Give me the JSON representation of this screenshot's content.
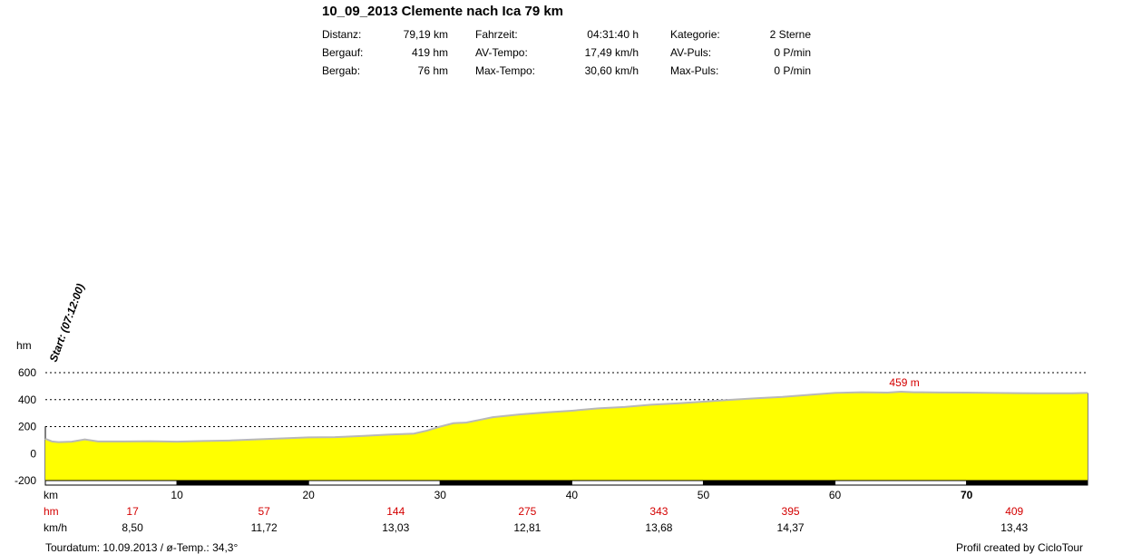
{
  "title": "10_09_2013 Clemente nach Ica 79 km",
  "stats": {
    "distanz_label": "Distanz:",
    "distanz_value": "79,19 km",
    "bergauf_label": "Bergauf:",
    "bergauf_value": "419 hm",
    "bergab_label": "Bergab:",
    "bergab_value": "76 hm",
    "fahrzeit_label": "Fahrzeit:",
    "fahrzeit_value": "04:31:40 h",
    "avtempo_label": "AV-Tempo:",
    "avtempo_value": "17,49 km/h",
    "maxtempo_label": "Max-Tempo:",
    "maxtempo_value": "30,60 km/h",
    "kategorie_label": "Kategorie:",
    "kategorie_value": "2 Sterne",
    "avpuls_label": "AV-Puls:",
    "avpuls_value": "0 P/min",
    "maxpuls_label": "Max-Puls:",
    "maxpuls_value": "0 P/min"
  },
  "start_label": "Start: (07:12:00)",
  "max_label": "459 m",
  "row_labels": {
    "km": "km",
    "hm": "hm",
    "kmh": "km/h"
  },
  "footer": {
    "left": "Tourdatum: 10.09.2013  /  ø-Temp.: 34,3°",
    "right": "Profil created by CicloTour"
  },
  "colors": {
    "fill": "#ffff00",
    "line": "#b8b8b8",
    "accent": "#d40000"
  },
  "chart_data": {
    "type": "area",
    "ylabel": "hm",
    "xlabel": "km",
    "ylim": [
      -200,
      600
    ],
    "xlim": [
      0,
      79.19
    ],
    "yticks": [
      600,
      400,
      200,
      0,
      -200
    ],
    "xticks": [
      10,
      20,
      30,
      40,
      50,
      60,
      70
    ],
    "grid": "dashed horizontal",
    "series": [
      {
        "x": [
          0,
          0.5,
          1,
          2,
          3,
          4,
          6,
          8,
          10,
          12,
          14,
          16,
          18,
          20,
          22,
          24,
          26,
          28,
          29,
          30,
          31,
          32,
          33,
          34,
          35,
          36,
          38,
          40,
          42,
          44,
          46,
          48,
          50,
          52,
          54,
          56,
          58,
          60,
          62,
          64,
          65,
          66,
          68,
          70,
          72,
          74,
          76,
          78,
          79.19
        ],
        "y": [
          110,
          90,
          85,
          88,
          105,
          90,
          90,
          92,
          88,
          93,
          97,
          105,
          113,
          120,
          122,
          130,
          140,
          148,
          170,
          200,
          225,
          230,
          250,
          270,
          280,
          290,
          305,
          318,
          335,
          345,
          362,
          372,
          385,
          398,
          410,
          420,
          435,
          450,
          455,
          452,
          459,
          455,
          453,
          452,
          450,
          448,
          447,
          447,
          450
        ]
      }
    ],
    "segment_stats": {
      "km": [
        5,
        15,
        25,
        35,
        45,
        55,
        65,
        75
      ],
      "hm": [
        "17",
        "57",
        "144",
        "275",
        "343",
        "395",
        "409"
      ],
      "hm_km": [
        8,
        18,
        28,
        38,
        48,
        58,
        75
      ],
      "kmh": [
        "8,50",
        "11,72",
        "13,03",
        "12,81",
        "13,68",
        "14,37",
        "13,43"
      ],
      "kmh_km": [
        8,
        18,
        28,
        38,
        48,
        58,
        75
      ]
    },
    "max_point": {
      "x": 65,
      "y": 459
    }
  }
}
